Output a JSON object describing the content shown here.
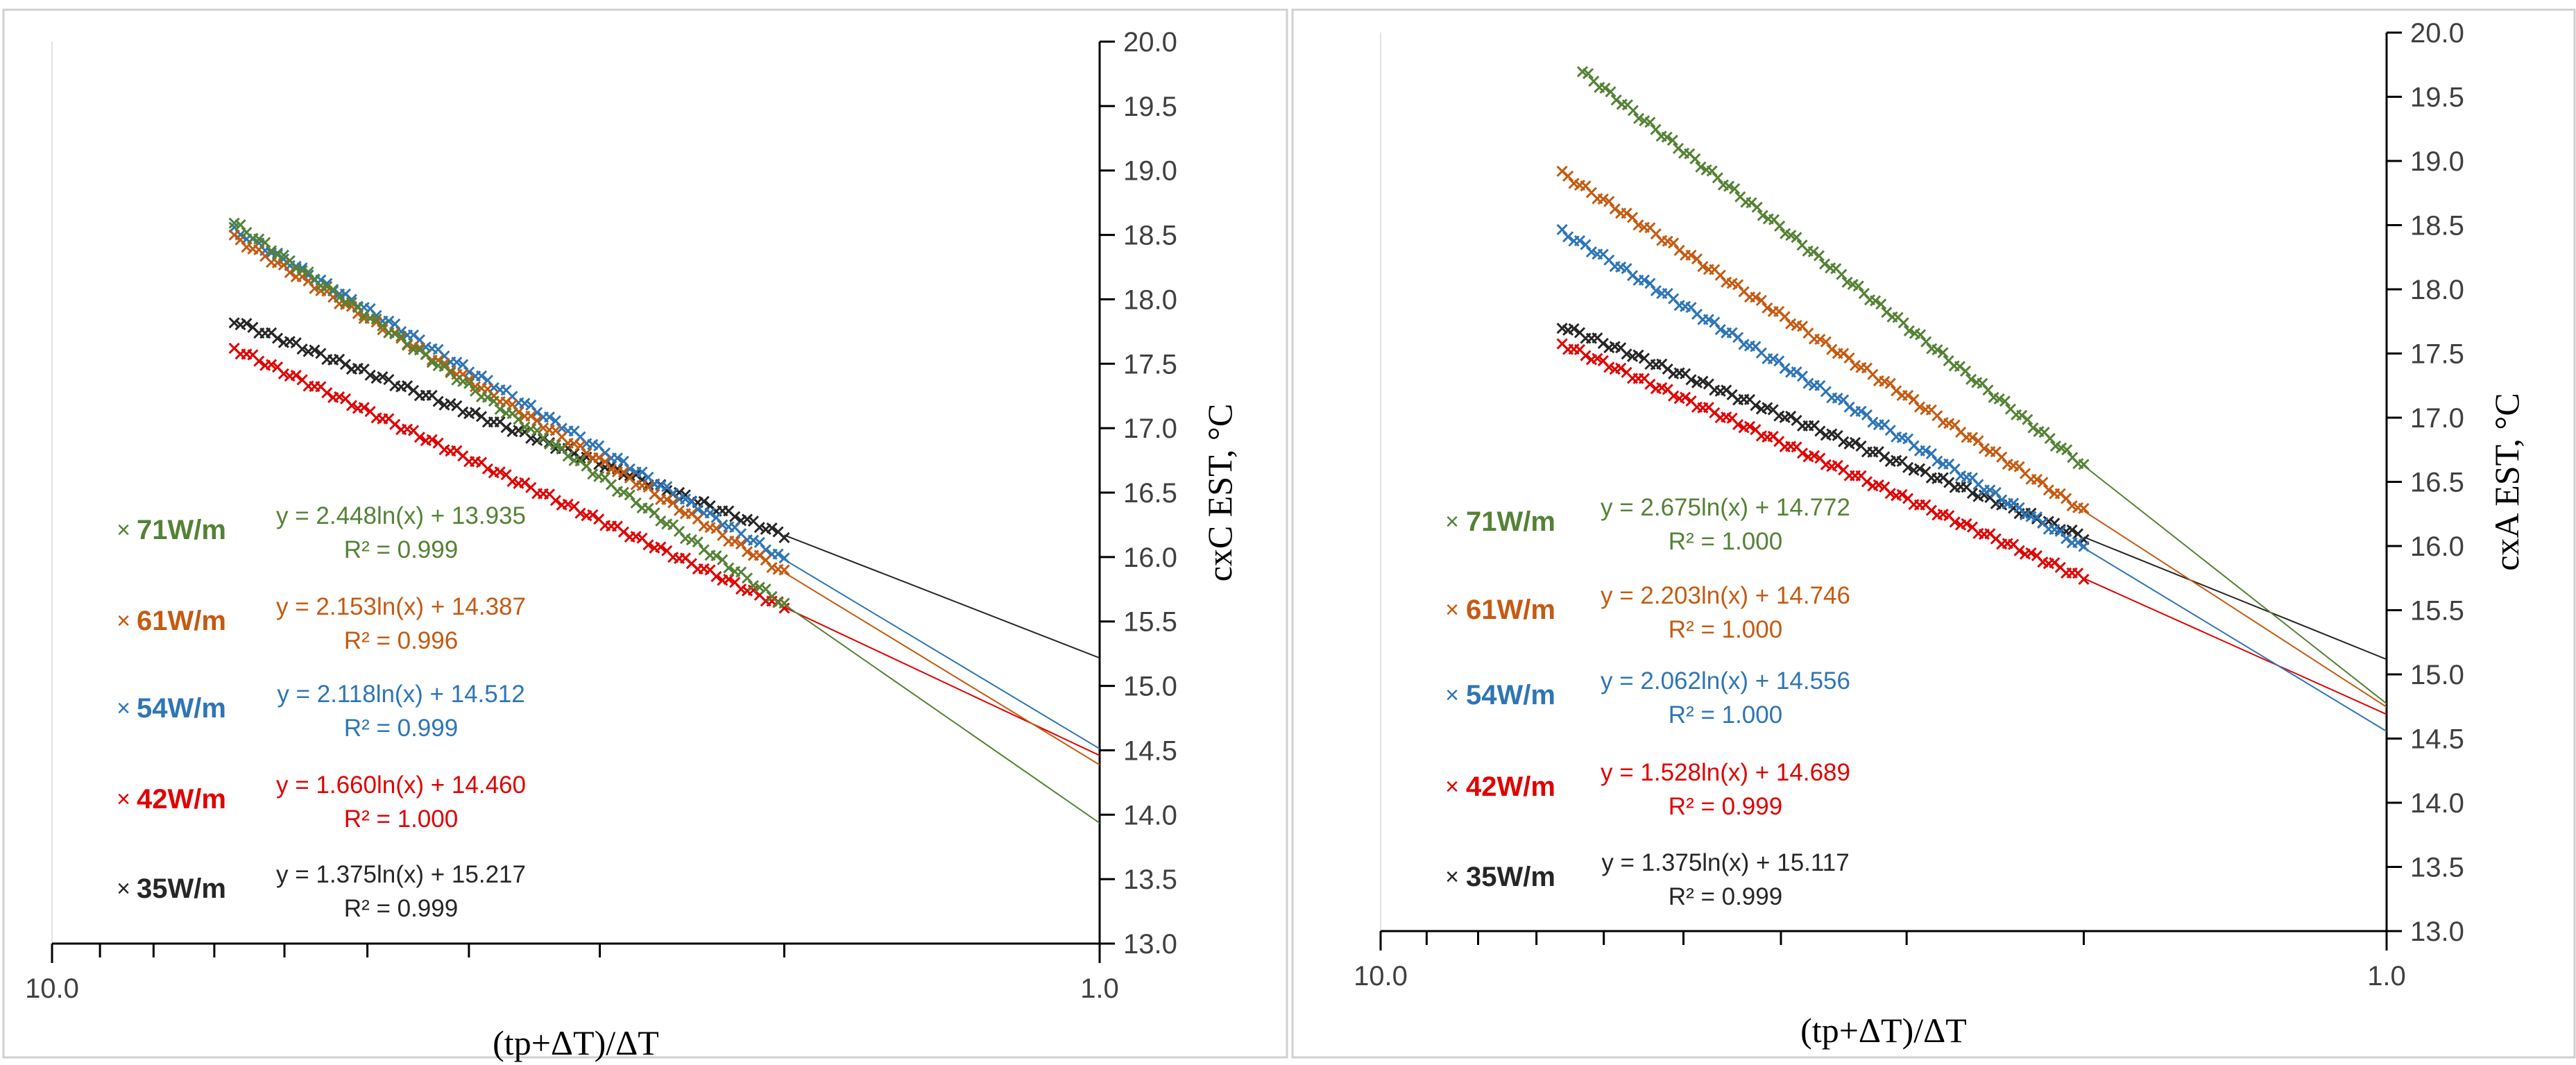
{
  "chart_data": [
    {
      "type": "scatter",
      "title": "",
      "xlabel": "(tp+ΔT)/ΔT",
      "ylabel": "cxC EST, °C",
      "x_scale": "log",
      "x_reversed": true,
      "xlim": [
        10.0,
        1.0
      ],
      "ylim": [
        13.0,
        20.0
      ],
      "y_step": 0.5,
      "x_tick_labels": [
        "10.0",
        "1.0"
      ],
      "legend_position": "left",
      "series": [
        {
          "name": "71W/m",
          "color": "#548235",
          "equation": "y = 2.448ln(x) + 13.935",
          "r2": "R² = 0.999",
          "coef_a": 2.448,
          "coef_b": 13.935,
          "x_range": [
            6.7,
            2.0
          ]
        },
        {
          "name": "61W/m",
          "color": "#C55A11",
          "equation": "y = 2.153ln(x) + 14.387",
          "r2": "R² = 0.996",
          "coef_a": 2.153,
          "coef_b": 14.387,
          "x_range": [
            6.7,
            2.0
          ]
        },
        {
          "name": "54W/m",
          "color": "#2E75B6",
          "equation": "y = 2.118ln(x) + 14.512",
          "r2": "R² = 0.999",
          "coef_a": 2.118,
          "coef_b": 14.512,
          "x_range": [
            6.7,
            2.0
          ]
        },
        {
          "name": "42W/m",
          "color": "#E00000",
          "equation": "y = 1.660ln(x) + 14.460",
          "r2": "R² = 1.000",
          "coef_a": 1.66,
          "coef_b": 14.46,
          "x_range": [
            6.7,
            2.0
          ]
        },
        {
          "name": "35W/m",
          "color": "#262626",
          "equation": "y = 1.375ln(x) + 15.217",
          "r2": "R² = 0.999",
          "coef_a": 1.375,
          "coef_b": 15.217,
          "x_range": [
            6.7,
            2.0
          ]
        }
      ]
    },
    {
      "type": "scatter",
      "title": "",
      "xlabel": "(tp+ΔT)/ΔT",
      "ylabel": "cxA EST, °C",
      "x_scale": "log",
      "x_reversed": true,
      "xlim": [
        10.0,
        1.0
      ],
      "ylim": [
        13.0,
        20.0
      ],
      "y_step": 0.5,
      "x_tick_labels": [
        "10.0",
        "1.0"
      ],
      "legend_position": "left",
      "series": [
        {
          "name": "71W/m",
          "color": "#548235",
          "equation": "y = 2.675ln(x) + 14.772",
          "r2": "R² = 1.000",
          "coef_a": 2.675,
          "coef_b": 14.772,
          "x_range": [
            6.3,
            2.0
          ]
        },
        {
          "name": "61W/m",
          "color": "#C55A11",
          "equation": "y = 2.203ln(x) + 14.746",
          "r2": "R² = 1.000",
          "coef_a": 2.203,
          "coef_b": 14.746,
          "x_range": [
            6.6,
            2.0
          ]
        },
        {
          "name": "54W/m",
          "color": "#2E75B6",
          "equation": "y = 2.062ln(x) + 14.556",
          "r2": "R² = 1.000",
          "coef_a": 2.062,
          "coef_b": 14.556,
          "x_range": [
            6.6,
            2.0
          ]
        },
        {
          "name": "42W/m",
          "color": "#E00000",
          "equation": "y = 1.528ln(x) + 14.689",
          "r2": "R² = 0.999",
          "coef_a": 1.528,
          "coef_b": 14.689,
          "x_range": [
            6.6,
            2.0
          ]
        },
        {
          "name": "35W/m",
          "color": "#262626",
          "equation": "y = 1.375ln(x) + 15.117",
          "r2": "R² = 0.999",
          "coef_a": 1.375,
          "coef_b": 15.117,
          "x_range": [
            6.6,
            2.0
          ]
        }
      ]
    }
  ]
}
